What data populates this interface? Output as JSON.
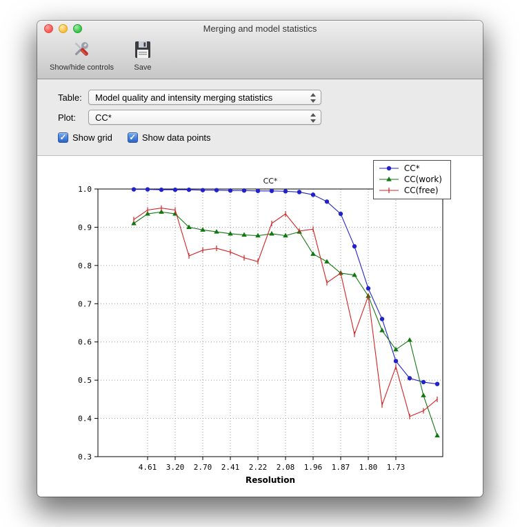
{
  "window": {
    "title": "Merging and model statistics",
    "traffic_lights": [
      {
        "name": "close",
        "color": "#fc5b57"
      },
      {
        "name": "minimize",
        "color": "#fdbe41"
      },
      {
        "name": "zoom",
        "color": "#34c84a"
      }
    ]
  },
  "toolbar": {
    "items": [
      {
        "label": "Show/hide controls",
        "icon": "tools-icon"
      },
      {
        "label": "Save",
        "icon": "save-floppy-icon"
      }
    ]
  },
  "controls": {
    "table_label": "Table:",
    "table_value": "Model quality and intensity merging statistics",
    "plot_label": "Plot:",
    "plot_value": "CC*",
    "checkboxes": [
      {
        "label": "Show grid",
        "checked": true
      },
      {
        "label": "Show data points",
        "checked": true
      }
    ]
  },
  "icons": {
    "checkmark": "✓"
  },
  "chart_data": {
    "type": "line",
    "title": "CC*",
    "xlabel": "Resolution",
    "ylabel": "",
    "ylim": [
      0.3,
      1.0
    ],
    "yticks": [
      0.3,
      0.4,
      0.5,
      0.6,
      0.7,
      0.8,
      0.9,
      1.0
    ],
    "x_tick_labels": [
      "4.61",
      "3.20",
      "2.70",
      "2.41",
      "2.22",
      "2.08",
      "1.96",
      "1.87",
      "1.80",
      "1.73"
    ],
    "x_tick_indices": [
      1,
      3,
      5,
      7,
      9,
      11,
      13,
      15,
      17,
      19
    ],
    "n_points": 23,
    "grid": true,
    "show_markers": true,
    "legend_position": "upper right",
    "series": [
      {
        "name": "CC*",
        "color": "#2222cc",
        "marker": "circle",
        "values": [
          0.999,
          0.999,
          0.998,
          0.998,
          0.998,
          0.997,
          0.997,
          0.996,
          0.996,
          0.995,
          0.995,
          0.994,
          0.992,
          0.985,
          0.967,
          0.935,
          0.85,
          0.74,
          0.66,
          0.55,
          0.505,
          0.495,
          0.49
        ]
      },
      {
        "name": "CC(work)",
        "color": "#117711",
        "marker": "triangle",
        "values": [
          0.91,
          0.935,
          0.94,
          0.935,
          0.9,
          0.893,
          0.888,
          0.883,
          0.88,
          0.878,
          0.883,
          0.878,
          0.888,
          0.83,
          0.81,
          0.78,
          0.775,
          0.72,
          0.63,
          0.58,
          0.605,
          0.46,
          0.355
        ]
      },
      {
        "name": "CC(free)",
        "color": "#d42222",
        "marker": "vline",
        "values": [
          0.92,
          0.945,
          0.95,
          0.945,
          0.825,
          0.84,
          0.845,
          0.835,
          0.82,
          0.81,
          0.91,
          0.935,
          0.89,
          0.895,
          0.755,
          0.78,
          0.62,
          0.72,
          0.435,
          0.535,
          0.405,
          0.42,
          0.45
        ]
      }
    ]
  }
}
